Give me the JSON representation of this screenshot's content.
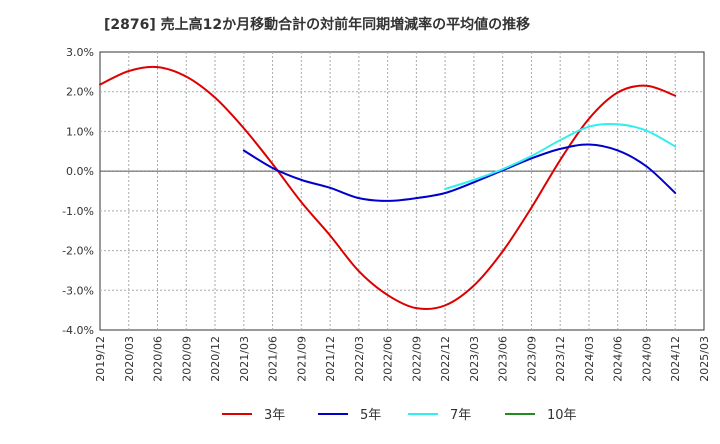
{
  "chart_data": {
    "type": "line",
    "title": "[2876]  売上高12か月移動合計の対前年同期増減率の平均値の推移",
    "xlabel": "",
    "ylabel": "",
    "y_ticks": [
      "3.0%",
      "2.0%",
      "1.0%",
      "0.0%",
      "-1.0%",
      "-2.0%",
      "-3.0%",
      "-4.0%"
    ],
    "ylim": [
      -4.0,
      3.0
    ],
    "x_ticks": [
      "2019/12",
      "2020/03",
      "2020/06",
      "2020/09",
      "2020/12",
      "2021/03",
      "2021/06",
      "2021/09",
      "2021/12",
      "2022/03",
      "2022/06",
      "2022/09",
      "2022/12",
      "2023/03",
      "2023/06",
      "2023/09",
      "2023/12",
      "2024/03",
      "2024/06",
      "2024/09",
      "2024/12",
      "2025/03"
    ],
    "grid": true,
    "legend_position": "bottom",
    "series": [
      {
        "name": "3年",
        "color": "#dd0000",
        "x": [
          "2019/12",
          "2020/03",
          "2020/06",
          "2020/09",
          "2020/12",
          "2021/03",
          "2021/06",
          "2021/09",
          "2021/12",
          "2022/03",
          "2022/06",
          "2022/09",
          "2022/12",
          "2023/03",
          "2023/06",
          "2023/09",
          "2023/12",
          "2024/03",
          "2024/06",
          "2024/09",
          "2024/12"
        ],
        "values": [
          2.18,
          2.52,
          2.62,
          2.38,
          1.85,
          1.08,
          0.18,
          -0.78,
          -1.62,
          -2.52,
          -3.12,
          -3.45,
          -3.38,
          -2.88,
          -2.02,
          -0.92,
          0.28,
          1.32,
          1.98,
          2.15,
          1.9
        ]
      },
      {
        "name": "5年",
        "color": "#0000cc",
        "x": [
          "2021/03",
          "2021/06",
          "2021/09",
          "2021/12",
          "2022/03",
          "2022/06",
          "2022/09",
          "2022/12",
          "2023/03",
          "2023/06",
          "2023/09",
          "2023/12",
          "2024/03",
          "2024/06",
          "2024/09",
          "2024/12"
        ],
        "values": [
          0.52,
          0.08,
          -0.22,
          -0.42,
          -0.68,
          -0.75,
          -0.68,
          -0.55,
          -0.28,
          0.02,
          0.32,
          0.56,
          0.67,
          0.52,
          0.12,
          -0.55
        ]
      },
      {
        "name": "7年",
        "color": "#33eeee",
        "x": [
          "2022/12",
          "2023/03",
          "2023/06",
          "2023/09",
          "2023/12",
          "2024/03",
          "2024/06",
          "2024/09",
          "2024/12"
        ],
        "values": [
          -0.45,
          -0.22,
          0.05,
          0.38,
          0.78,
          1.12,
          1.18,
          1.02,
          0.62
        ]
      },
      {
        "name": "10年",
        "color": "#228b22",
        "x": [],
        "values": []
      }
    ]
  }
}
